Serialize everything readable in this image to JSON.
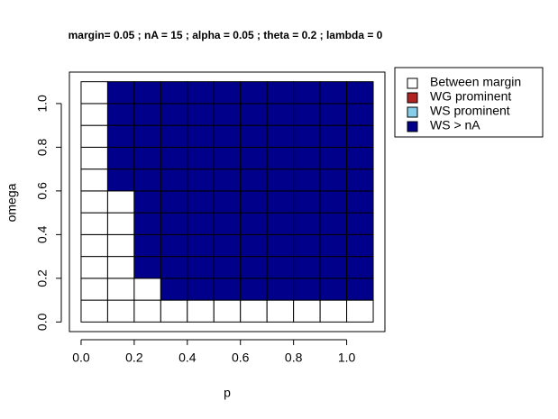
{
  "chart_data": {
    "type": "heatmap",
    "title": "margin= 0.05 ; nA = 15 ; alpha = 0.05 ; theta = 0.2 ; lambda = 0",
    "x_label": "p",
    "y_label": "omega",
    "x": [
      0,
      0.1,
      0.2,
      0.3,
      0.4,
      0.5,
      0.6,
      0.7,
      0.8,
      0.9,
      1.0
    ],
    "y": [
      0,
      0.1,
      0.2,
      0.3,
      0.4,
      0.5,
      0.6,
      0.7,
      0.8,
      0.9,
      1.0
    ],
    "cell_size": 0.1,
    "values": [
      [
        0,
        0,
        0,
        0,
        0,
        0,
        0,
        0,
        0,
        0,
        0
      ],
      [
        0,
        0,
        0,
        3,
        3,
        3,
        3,
        3,
        3,
        3,
        3
      ],
      [
        0,
        0,
        3,
        3,
        3,
        3,
        3,
        3,
        3,
        3,
        3
      ],
      [
        0,
        0,
        3,
        3,
        3,
        3,
        3,
        3,
        3,
        3,
        3
      ],
      [
        0,
        0,
        3,
        3,
        3,
        3,
        3,
        3,
        3,
        3,
        3
      ],
      [
        0,
        0,
        3,
        3,
        3,
        3,
        3,
        3,
        3,
        3,
        3
      ],
      [
        0,
        3,
        3,
        3,
        3,
        3,
        3,
        3,
        3,
        3,
        3
      ],
      [
        0,
        3,
        3,
        3,
        3,
        3,
        3,
        3,
        3,
        3,
        3
      ],
      [
        0,
        3,
        3,
        3,
        3,
        3,
        3,
        3,
        3,
        3,
        3
      ],
      [
        0,
        3,
        3,
        3,
        3,
        3,
        3,
        3,
        3,
        3,
        3
      ],
      [
        0,
        3,
        3,
        3,
        3,
        3,
        3,
        3,
        3,
        3,
        3
      ]
    ],
    "series": [
      {
        "name": "Between margin",
        "color": "#ffffff"
      },
      {
        "name": "WG prominent",
        "color": "#b22222"
      },
      {
        "name": "WS prominent",
        "color": "#87ceeb"
      },
      {
        "name": "WS > nA",
        "color": "#00008b"
      }
    ],
    "xlim": [
      -0.044,
      1.144
    ],
    "ylim": [
      -0.044,
      1.144
    ],
    "xticks": [
      {
        "value": 0,
        "label": "0.0"
      },
      0.2,
      0.4,
      0.6,
      0.8,
      {
        "value": 1,
        "label": "1.0"
      }
    ],
    "yticks": [
      {
        "value": 0,
        "label": "0.0"
      },
      0.2,
      0.4,
      0.6,
      0.8,
      {
        "value": 1,
        "label": "1.0"
      }
    ]
  }
}
